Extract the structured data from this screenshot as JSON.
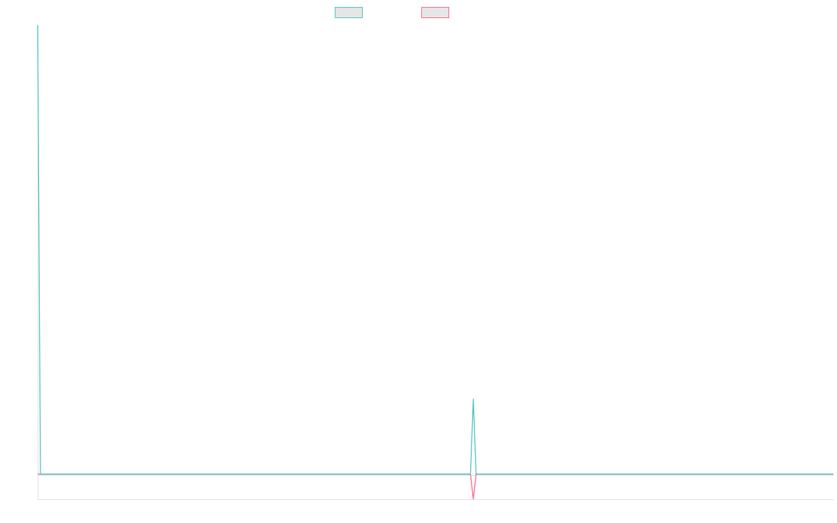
{
  "chart_data": {
    "type": "line",
    "title": "",
    "xlabel": "",
    "ylabel": "",
    "ylim": [
      -5.6,
      100
    ],
    "grid": false,
    "legend_placement": "top",
    "series": [
      {
        "color": "#4bc0c0",
        "values": [
          100,
          0,
          0,
          0,
          0,
          0,
          0,
          0,
          0,
          0,
          0,
          0,
          0,
          0,
          0,
          0,
          0,
          0,
          0,
          0,
          0,
          0,
          0,
          0,
          0,
          0,
          0,
          0,
          0,
          0,
          0,
          0,
          0,
          0,
          0,
          0,
          0,
          0,
          0,
          0,
          0,
          0,
          0,
          0,
          0,
          0,
          0,
          0,
          0,
          0,
          0,
          0,
          0,
          0,
          0,
          0,
          0,
          0,
          0,
          0,
          0,
          0,
          0,
          0,
          0,
          0,
          0,
          0,
          0,
          0,
          0,
          0,
          0,
          0,
          0,
          0,
          0,
          0,
          0,
          0,
          0,
          0,
          0,
          0,
          0,
          0,
          0,
          0,
          0,
          0,
          0,
          0,
          0,
          0,
          0,
          0,
          0,
          0,
          0,
          0,
          0,
          0,
          0,
          0,
          0,
          0,
          0,
          0,
          0,
          0,
          0,
          0,
          0,
          0,
          0,
          0,
          0,
          0,
          0,
          0,
          0,
          0,
          0,
          0,
          0,
          0,
          0,
          0,
          0,
          0,
          0,
          0,
          0,
          0,
          0,
          0,
          0,
          0,
          0,
          0,
          0,
          0,
          0,
          0,
          0,
          0,
          0,
          0,
          0,
          0,
          0,
          0,
          0,
          0,
          0,
          0,
          16.8,
          0,
          0,
          0,
          0,
          0,
          0,
          0,
          0,
          0,
          0,
          0,
          0,
          0,
          0,
          0,
          0,
          0,
          0,
          0,
          0,
          0,
          0,
          0,
          0,
          0,
          0,
          0,
          0,
          0,
          0,
          0,
          0,
          0,
          0,
          0,
          0,
          0,
          0,
          0,
          0,
          0,
          0,
          0,
          0,
          0,
          0,
          0,
          0,
          0,
          0,
          0,
          0,
          0,
          0,
          0,
          0,
          0,
          0,
          0,
          0,
          0,
          0,
          0,
          0,
          0,
          0,
          0,
          0,
          0,
          0,
          0,
          0,
          0,
          0,
          0,
          0,
          0,
          0,
          0,
          0,
          0,
          0,
          0,
          0,
          0,
          0,
          0,
          0,
          0,
          0,
          0,
          0,
          0,
          0,
          0,
          0,
          0,
          0,
          0,
          0,
          0,
          0,
          0,
          0,
          0,
          0,
          0,
          0,
          0,
          0,
          0,
          0,
          0,
          0,
          0,
          0,
          0,
          0,
          0,
          0,
          0,
          0,
          0,
          0,
          0,
          0,
          0,
          0,
          0
        ]
      },
      {
        "color": "#ff6384",
        "values": [
          0,
          0,
          0,
          0,
          0,
          0,
          0,
          0,
          0,
          0,
          0,
          0,
          0,
          0,
          0,
          0,
          0,
          0,
          0,
          0,
          0,
          0,
          0,
          0,
          0,
          0,
          0,
          0,
          0,
          0,
          0,
          0,
          0,
          0,
          0,
          0,
          0,
          0,
          0,
          0,
          0,
          0,
          0,
          0,
          0,
          0,
          0,
          0,
          0,
          0,
          0,
          0,
          0,
          0,
          0,
          0,
          0,
          0,
          0,
          0,
          0,
          0,
          0,
          0,
          0,
          0,
          0,
          0,
          0,
          0,
          0,
          0,
          0,
          0,
          0,
          0,
          0,
          0,
          0,
          0,
          0,
          0,
          0,
          0,
          0,
          0,
          0,
          0,
          0,
          0,
          0,
          0,
          0,
          0,
          0,
          0,
          0,
          0,
          0,
          0,
          0,
          0,
          0,
          0,
          0,
          0,
          0,
          0,
          0,
          0,
          0,
          0,
          0,
          0,
          0,
          0,
          0,
          0,
          0,
          0,
          0,
          0,
          0,
          0,
          0,
          0,
          0,
          0,
          0,
          0,
          0,
          0,
          0,
          0,
          0,
          0,
          0,
          0,
          0,
          0,
          0,
          0,
          0,
          0,
          0,
          0,
          0,
          0,
          0,
          0,
          0,
          0,
          0,
          0,
          0,
          0,
          -5.6,
          0,
          0,
          0,
          0,
          0,
          0,
          0,
          0,
          0,
          0,
          0,
          0,
          0,
          0,
          0,
          0,
          0,
          0,
          0,
          0,
          0,
          0,
          0,
          0,
          0,
          0,
          0,
          0,
          0,
          0,
          0,
          0,
          0,
          0,
          0,
          0,
          0,
          0,
          0,
          0,
          0,
          0,
          0,
          0,
          0,
          0,
          0,
          0,
          0,
          0,
          0,
          0,
          0,
          0,
          0,
          0,
          0,
          0,
          0,
          0,
          0,
          0,
          0,
          0,
          0,
          0,
          0,
          0,
          0,
          0,
          0,
          0,
          0,
          0,
          0,
          0,
          0,
          0,
          0,
          0,
          0,
          0,
          0,
          0,
          0,
          0,
          0,
          0,
          0,
          0,
          0,
          0,
          0,
          0,
          0,
          0,
          0,
          0,
          0,
          0,
          0,
          0,
          0,
          0,
          0,
          0,
          0,
          0,
          0,
          0,
          0,
          0,
          0,
          0,
          0,
          0,
          0,
          0,
          0,
          0,
          0,
          0,
          0,
          0,
          0,
          0,
          0,
          0,
          0
        ]
      }
    ],
    "legend_fill": "#e6e6e6",
    "axis_color": "#e0e0e0"
  }
}
